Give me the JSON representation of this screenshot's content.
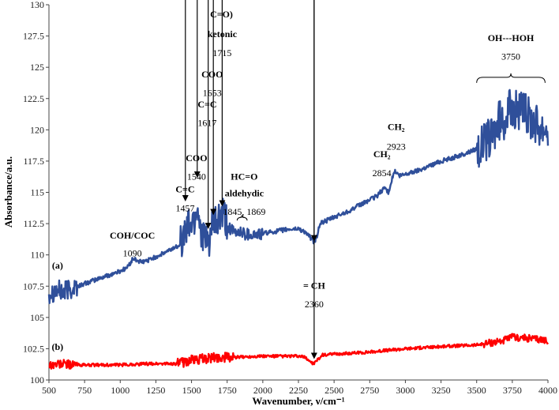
{
  "chart_data": {
    "type": "line",
    "xlabel": "Wavenumber, ν/cm⁻¹",
    "ylabel": "Absorbance/a.u.",
    "xlim": [
      500,
      4000
    ],
    "ylim": [
      100,
      130
    ],
    "x_ticks": [
      500,
      750,
      1000,
      1250,
      1500,
      1750,
      2000,
      2250,
      2500,
      2750,
      3000,
      3250,
      3500,
      3750,
      4000
    ],
    "y_ticks": [
      100,
      102.5,
      105,
      107.5,
      110,
      112.5,
      115,
      117.5,
      120,
      122.5,
      125,
      127.5,
      130
    ],
    "series": [
      {
        "name": "(a)",
        "color": "#2f4f9a",
        "points": [
          [
            500,
            107.0
          ],
          [
            550,
            107.2
          ],
          [
            600,
            107.0
          ],
          [
            650,
            107.3
          ],
          [
            700,
            107.5
          ],
          [
            800,
            107.9
          ],
          [
            900,
            108.3
          ],
          [
            1000,
            108.7
          ],
          [
            1050,
            109.0
          ],
          [
            1090,
            109.7
          ],
          [
            1150,
            109.4
          ],
          [
            1200,
            109.6
          ],
          [
            1300,
            110.1
          ],
          [
            1400,
            110.7
          ],
          [
            1440,
            111.2
          ],
          [
            1457,
            112.0
          ],
          [
            1480,
            112.4
          ],
          [
            1500,
            112.6
          ],
          [
            1520,
            112.8
          ],
          [
            1540,
            114.0
          ],
          [
            1560,
            112.5
          ],
          [
            1600,
            110.8
          ],
          [
            1617,
            111.0
          ],
          [
            1653,
            112.4
          ],
          [
            1680,
            112.6
          ],
          [
            1715,
            113.2
          ],
          [
            1750,
            112.4
          ],
          [
            1800,
            111.7
          ],
          [
            1845,
            111.9
          ],
          [
            1869,
            111.7
          ],
          [
            1950,
            111.6
          ],
          [
            2050,
            111.8
          ],
          [
            2150,
            112.0
          ],
          [
            2250,
            112.1
          ],
          [
            2300,
            111.8
          ],
          [
            2340,
            111.3
          ],
          [
            2360,
            111.0
          ],
          [
            2380,
            111.5
          ],
          [
            2400,
            112.5
          ],
          [
            2500,
            113.0
          ],
          [
            2600,
            113.5
          ],
          [
            2700,
            114.1
          ],
          [
            2800,
            114.7
          ],
          [
            2854,
            115.4
          ],
          [
            2880,
            115.0
          ],
          [
            2923,
            116.7
          ],
          [
            2960,
            116.3
          ],
          [
            3100,
            116.8
          ],
          [
            3250,
            117.5
          ],
          [
            3400,
            118.0
          ],
          [
            3500,
            118.5
          ],
          [
            3600,
            119.3
          ],
          [
            3650,
            120.5
          ],
          [
            3700,
            121.0
          ],
          [
            3750,
            121.8
          ],
          [
            3800,
            121.5
          ],
          [
            3850,
            121.2
          ],
          [
            3900,
            120.8
          ],
          [
            3950,
            120.3
          ],
          [
            4000,
            120.3
          ]
        ]
      },
      {
        "name": "(b)",
        "color": "#ff0000",
        "points": [
          [
            500,
            101.2
          ],
          [
            600,
            101.3
          ],
          [
            700,
            101.2
          ],
          [
            900,
            101.2
          ],
          [
            1000,
            101.2
          ],
          [
            1200,
            101.3
          ],
          [
            1400,
            101.3
          ],
          [
            1500,
            101.6
          ],
          [
            1600,
            101.7
          ],
          [
            1700,
            101.8
          ],
          [
            1800,
            101.8
          ],
          [
            1950,
            101.9
          ],
          [
            2100,
            101.9
          ],
          [
            2250,
            101.9
          ],
          [
            2300,
            101.8
          ],
          [
            2340,
            101.4
          ],
          [
            2360,
            101.3
          ],
          [
            2390,
            101.7
          ],
          [
            2420,
            102.0
          ],
          [
            2700,
            102.2
          ],
          [
            3000,
            102.5
          ],
          [
            3300,
            102.7
          ],
          [
            3500,
            102.8
          ],
          [
            3600,
            103.0
          ],
          [
            3700,
            103.2
          ],
          [
            3750,
            103.4
          ],
          [
            3800,
            103.4
          ],
          [
            3900,
            103.3
          ],
          [
            4000,
            103.2
          ]
        ]
      }
    ],
    "curve_labels": [
      {
        "text": "(a)",
        "x": 560,
        "y": 108.9
      },
      {
        "text": "(b)",
        "x": 560,
        "y": 102.4
      }
    ],
    "annotations": [
      {
        "label": "COH/COC",
        "value": "1090",
        "label_bold": true,
        "x": 1085,
        "y_label": 111.3,
        "y_value": 109.9
      },
      {
        "label": "C=C",
        "value": "1457",
        "label_bold": true,
        "x": 1455,
        "y_label": 115.0,
        "y_value": 113.5
      },
      {
        "label": "COO",
        "value": "1540",
        "label_bold": true,
        "x": 1535,
        "y_label": 117.5,
        "y_value": 116.0
      },
      {
        "label": "C=C",
        "value": "1617",
        "label_bold": true,
        "x": 1610,
        "y_label": 121.8,
        "y_value": 120.3
      },
      {
        "label": "COO",
        "value": "1653",
        "label_bold": true,
        "x": 1645,
        "y_label": 124.2,
        "y_value": 122.7
      },
      {
        "label": "C=O)",
        "value": "",
        "label_bold": true,
        "x": 1710,
        "y_label": 129.0,
        "y_value": 0
      },
      {
        "label": "ketonic",
        "value": "1715",
        "label_bold": true,
        "x": 1715,
        "y_label": 127.4,
        "y_value": 125.9
      },
      {
        "label": "HC=O",
        "value": "",
        "label_bold": true,
        "x": 1870,
        "y_label": 116.0,
        "y_value": 0
      },
      {
        "label": "aldehydic",
        "value": "1845, 1869",
        "label_bold": true,
        "x": 1870,
        "y_label": 114.7,
        "y_value": 113.2
      },
      {
        "label": "CH₂",
        "value": "2854",
        "label_bold": true,
        "x": 2835,
        "y_label": 117.8,
        "y_value": 116.3
      },
      {
        "label": "CH₂",
        "value": "2923",
        "label_bold": true,
        "x": 2935,
        "y_label": 120.0,
        "y_value": 118.4
      },
      {
        "label": "OH---HOH",
        "value": "3750",
        "label_bold": true,
        "x": 3740,
        "y_label": 127.1,
        "y_value": 125.6
      },
      {
        "label": "= CH",
        "value": "2360",
        "label_bold": true,
        "x": 2360,
        "y_label": 107.3,
        "y_value": 105.8
      }
    ]
  }
}
